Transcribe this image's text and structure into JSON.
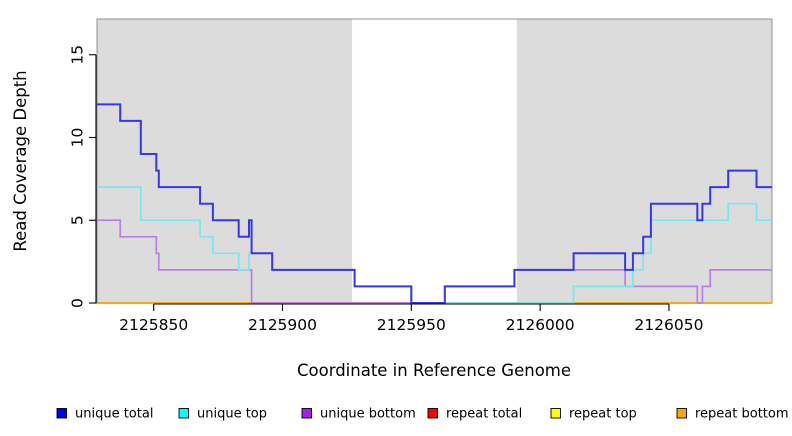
{
  "chart_data": {
    "type": "line",
    "step": "after",
    "title": "",
    "xlabel": "Coordinate in Reference Genome",
    "ylabel": "Read Coverage Depth",
    "x_min": 2125828,
    "x_max": 2126090,
    "y_min": 0,
    "y_max": 17.16,
    "x_ticks": [
      2125850,
      2125900,
      2125950,
      2126000,
      2126050
    ],
    "y_ticks": [
      0,
      5,
      10,
      15
    ],
    "grid": "off",
    "plot_bg_shaded_color": "#dcdcdc",
    "frame_color": "#909090",
    "shaded_regions": [
      {
        "from": 2125828,
        "to": 2125927
      },
      {
        "from": 2125991,
        "to": 2126090
      }
    ],
    "legend_position": "bottom",
    "series": [
      {
        "name": "unique total",
        "line_color": "#3636f0",
        "legend_color": "#0000f0",
        "draw_index": 5,
        "points": [
          [
            2125828,
            12
          ],
          [
            2125837,
            11
          ],
          [
            2125845,
            9
          ],
          [
            2125851,
            8
          ],
          [
            2125852,
            7
          ],
          [
            2125868,
            6
          ],
          [
            2125873,
            5
          ],
          [
            2125883,
            4
          ],
          [
            2125887,
            5
          ],
          [
            2125888,
            3
          ],
          [
            2125896,
            2
          ],
          [
            2125928,
            1
          ],
          [
            2125950,
            0
          ],
          [
            2125963,
            1
          ],
          [
            2125990,
            2
          ],
          [
            2126013,
            3
          ],
          [
            2126033,
            2
          ],
          [
            2126036,
            3
          ],
          [
            2126040,
            4
          ],
          [
            2126043,
            6
          ],
          [
            2126061,
            5
          ],
          [
            2126063,
            6
          ],
          [
            2126066,
            7
          ],
          [
            2126073,
            8
          ],
          [
            2126084,
            7
          ],
          [
            2126090,
            7
          ]
        ]
      },
      {
        "name": "unique top",
        "line_color": "#77e8ee",
        "legend_color": "#00ffff",
        "draw_index": 4,
        "points": [
          [
            2125828,
            7
          ],
          [
            2125845,
            5
          ],
          [
            2125868,
            4
          ],
          [
            2125873,
            3
          ],
          [
            2125883,
            2
          ],
          [
            2125887,
            3
          ],
          [
            2125896,
            2
          ],
          [
            2125928,
            1
          ],
          [
            2125950,
            0
          ],
          [
            2126013,
            1
          ],
          [
            2126036,
            2
          ],
          [
            2126040,
            3
          ],
          [
            2126043,
            5
          ],
          [
            2126073,
            6
          ],
          [
            2126084,
            5
          ],
          [
            2126090,
            5
          ]
        ]
      },
      {
        "name": "unique bottom",
        "line_color": "#bb7de8",
        "legend_color": "#a020f0",
        "draw_index": 3,
        "points": [
          [
            2125828,
            5
          ],
          [
            2125837,
            4
          ],
          [
            2125851,
            3
          ],
          [
            2125852,
            2
          ],
          [
            2125888,
            0
          ],
          [
            2125963,
            1
          ],
          [
            2125990,
            2
          ],
          [
            2126033,
            1
          ],
          [
            2126061,
            0
          ],
          [
            2126063,
            1
          ],
          [
            2126066,
            2
          ],
          [
            2126090,
            2
          ]
        ]
      },
      {
        "name": "repeat total",
        "line_color": "#e80000",
        "legend_color": "#ff0000",
        "draw_index": 0,
        "points": [
          [
            2125828,
            0
          ],
          [
            2126090,
            0
          ]
        ]
      },
      {
        "name": "repeat top",
        "line_color": "#ffff00",
        "legend_color": "#ffff00",
        "draw_index": 1,
        "points": [
          [
            2125828,
            0
          ],
          [
            2126090,
            0
          ]
        ]
      },
      {
        "name": "repeat bottom",
        "line_color": "#ffa500",
        "legend_color": "#ffa500",
        "draw_index": 2,
        "points": [
          [
            2125828,
            0
          ],
          [
            2126090,
            0
          ]
        ]
      }
    ]
  }
}
